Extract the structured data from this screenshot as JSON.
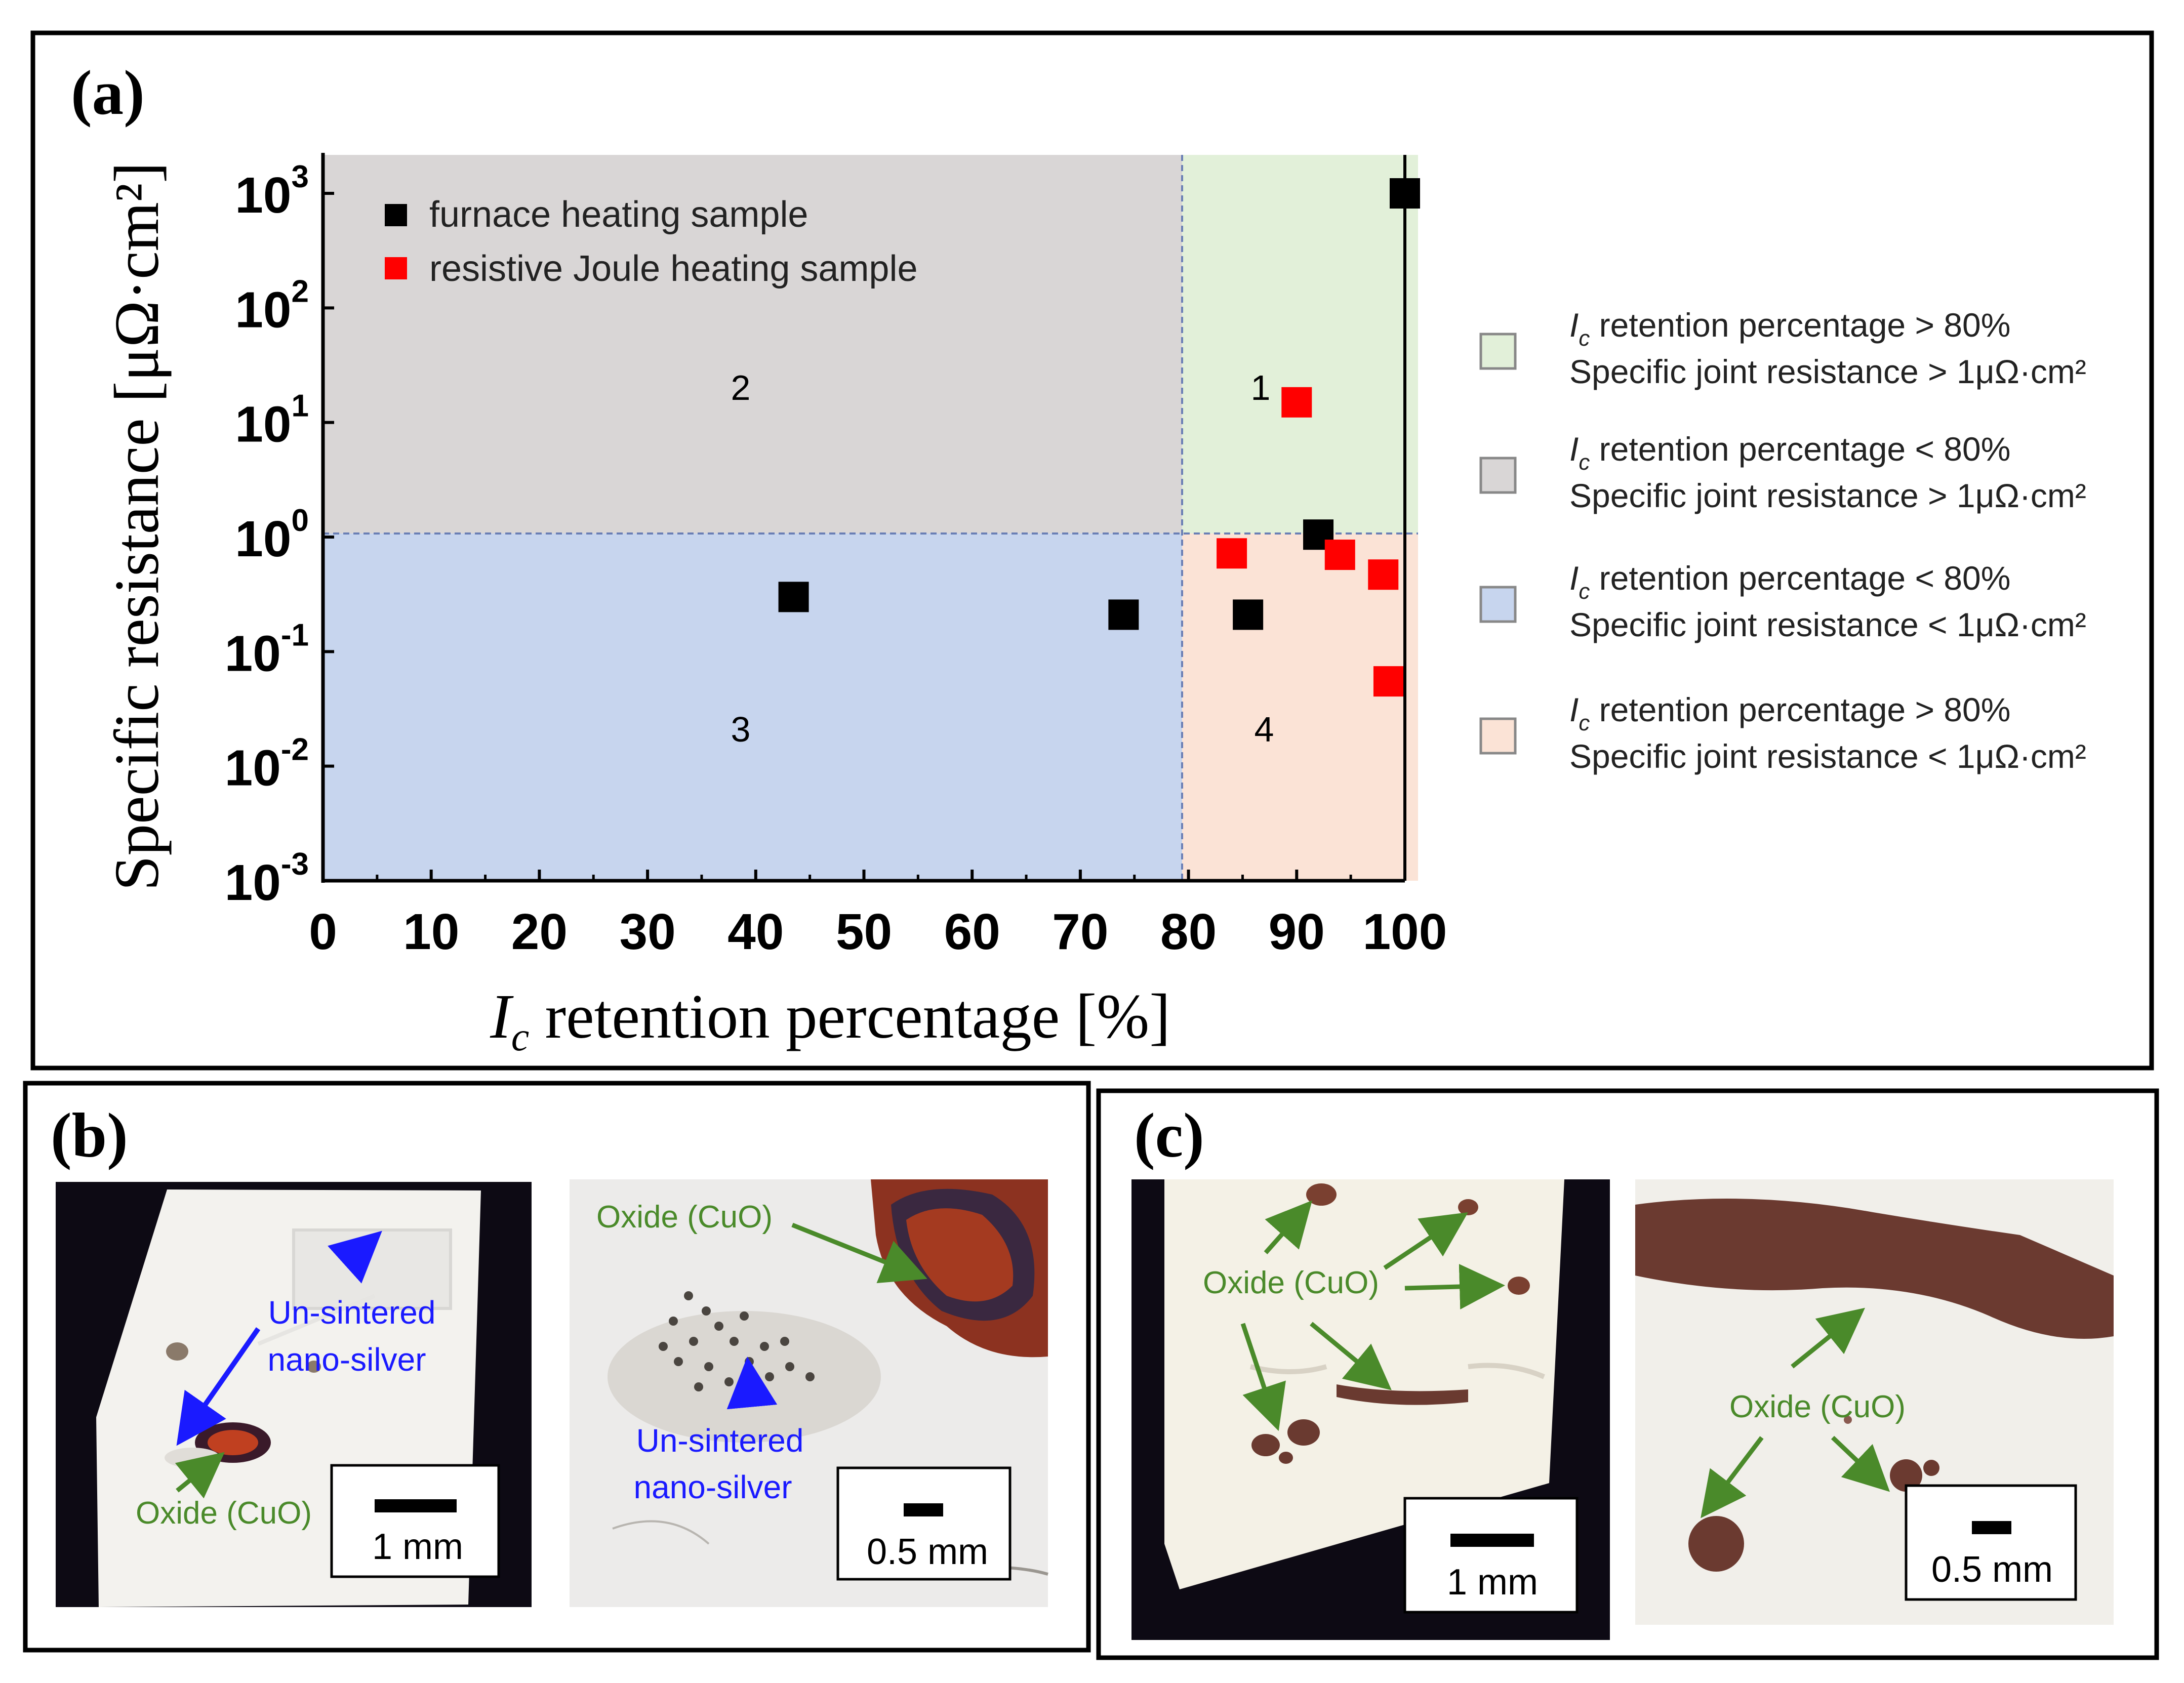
{
  "panel_a": {
    "label": "(a)",
    "region_labels": [
      "1",
      "2",
      "3",
      "4"
    ],
    "legend_markers": [
      {
        "label": "furnace heating sample",
        "color": "#000000"
      },
      {
        "label": "resistive Joule heating sample",
        "color": "#ff0000"
      }
    ],
    "side_legend": [
      {
        "line1_symbol": "I",
        "line1_sub": "c",
        "line1_rest": " retention percentage > 80%",
        "line2": "Specific joint resistance > 1μΩ·cm²",
        "color": "#e2f0d9"
      },
      {
        "line1_symbol": "I",
        "line1_sub": "c",
        "line1_rest": " retention percentage < 80%",
        "line2": "Specific joint resistance > 1μΩ·cm²",
        "color": "#d9d6d6"
      },
      {
        "line1_symbol": "I",
        "line1_sub": "c",
        "line1_rest": " retention percentage < 80%",
        "line2": "Specific joint resistance < 1μΩ·cm²",
        "color": "#c7d5ee"
      },
      {
        "line1_symbol": "I",
        "line1_sub": "c",
        "line1_rest": " retention percentage > 80%",
        "line2": "Specific joint resistance < 1μΩ·cm²",
        "color": "#fbe3d6"
      }
    ]
  },
  "chart_data": {
    "type": "scatter",
    "xlabel_symbol": "I",
    "xlabel_sub": "c",
    "xlabel_rest": " retention percentage [%]",
    "ylabel": "Specific resistance [μΩ·cm²]",
    "xlim": [
      0,
      100
    ],
    "ylim": [
      0.001,
      1000
    ],
    "y_scale": "log",
    "x_ticks": [
      "0",
      "10",
      "20",
      "30",
      "40",
      "50",
      "60",
      "70",
      "80",
      "90",
      "100"
    ],
    "y_ticks": [
      {
        "base": "10",
        "exp": "-3"
      },
      {
        "base": "10",
        "exp": "-2"
      },
      {
        "base": "10",
        "exp": "-1"
      },
      {
        "base": "10",
        "exp": "0"
      },
      {
        "base": "10",
        "exp": "1"
      },
      {
        "base": "10",
        "exp": "2"
      },
      {
        "base": "10",
        "exp": "3"
      }
    ],
    "thresholds": {
      "x": 80,
      "y": 1
    },
    "series": [
      {
        "name": "furnace heating sample",
        "color": "#000000",
        "points": [
          [
            43.5,
            0.3
          ],
          [
            74,
            0.21
          ],
          [
            85.5,
            0.21
          ],
          [
            92,
            1.05
          ],
          [
            100,
            1000
          ]
        ]
      },
      {
        "name": "resistive Joule heating sample",
        "color": "#ff0000",
        "points": [
          [
            90,
            15
          ],
          [
            84,
            0.72
          ],
          [
            94,
            0.7
          ],
          [
            98,
            0.47
          ],
          [
            98.5,
            0.055
          ]
        ]
      }
    ]
  },
  "panel_b": {
    "label": "(b)",
    "left": {
      "unsintered_label_line1": "Un-sintered",
      "unsintered_label_line2": "nano-silver",
      "oxide_label": "Oxide (CuO)",
      "scale_label": "1 mm"
    },
    "right": {
      "oxide_label": "Oxide (CuO)",
      "unsintered_label_line1": "Un-sintered",
      "unsintered_label_line2": "nano-silver",
      "scale_label": "0.5 mm"
    }
  },
  "panel_c": {
    "label": "(c)",
    "left": {
      "oxide_label": "Oxide (CuO)",
      "scale_label": "1 mm"
    },
    "right": {
      "oxide_label": "Oxide (CuO)",
      "scale_label": "0.5 mm"
    }
  }
}
